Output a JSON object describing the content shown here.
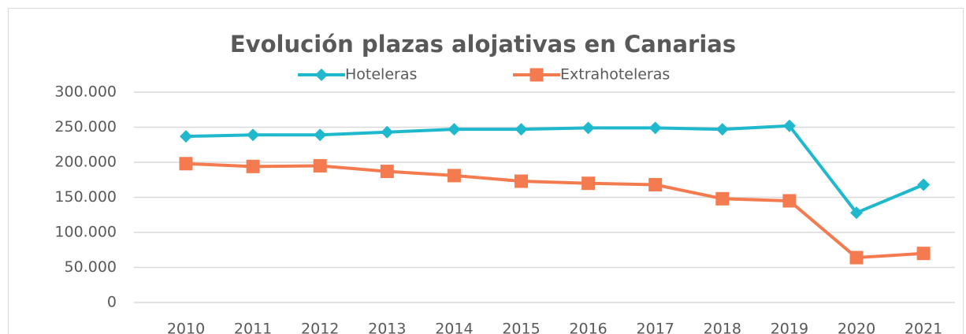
{
  "chart_data": {
    "type": "line",
    "title": "Evolución plazas alojativas en Canarias",
    "categories": [
      "2010",
      "2011",
      "2012",
      "2013",
      "2014",
      "2015",
      "2016",
      "2017",
      "2018",
      "2019",
      "2020",
      "2021"
    ],
    "series": [
      {
        "name": "Hoteleras",
        "color": "#1fb8cc",
        "marker": "diamond",
        "values": [
          237000,
          239000,
          239000,
          243000,
          247000,
          247000,
          249000,
          249000,
          247000,
          252000,
          128000,
          168000
        ]
      },
      {
        "name": "Extrahoteleras",
        "color": "#f47b50",
        "marker": "square",
        "values": [
          198000,
          194000,
          195000,
          187000,
          181000,
          173000,
          170000,
          168000,
          148000,
          145000,
          64000,
          70000
        ]
      }
    ],
    "ylim": [
      0,
      300000
    ],
    "yticks": [
      0,
      {
        "value": 50000,
        "label": "50.000"
      },
      {
        "value": 100000,
        "label": "100.000"
      },
      {
        "value": 150000,
        "label": "150.000"
      },
      {
        "value": 200000,
        "label": "200.000"
      },
      {
        "value": 250000,
        "label": "250.000"
      },
      {
        "value": 300000,
        "label": "300.000"
      }
    ],
    "grid": true,
    "legend": "top"
  }
}
